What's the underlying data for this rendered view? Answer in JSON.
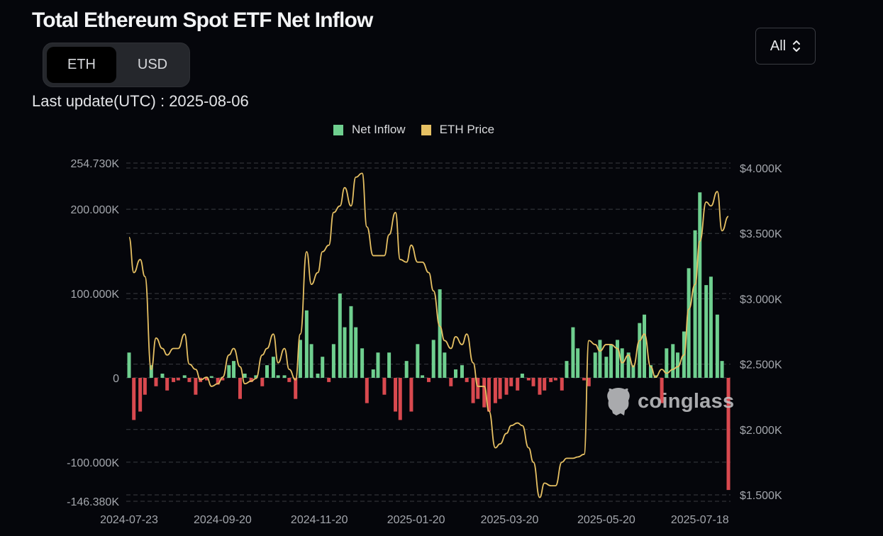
{
  "header": {
    "title": "Total Ethereum Spot ETF Net Inflow",
    "unit_toggle": {
      "options": [
        "ETH",
        "USD"
      ],
      "selected": "ETH"
    },
    "last_update": "Last update(UTC) : 2025-08-06",
    "range_select": {
      "value": "All",
      "icon": "chevron-up-down-icon"
    }
  },
  "watermark": {
    "text": "coinglass",
    "icon": "coinglass-logo-icon"
  },
  "chart_data": {
    "type": "bar+line",
    "legend": [
      {
        "name": "Net Inflow",
        "color": "#6fcf8f"
      },
      {
        "name": "ETH Price",
        "color": "#e6c063"
      }
    ],
    "legend_position": "top-center",
    "colors": {
      "positive": "#6fcf8f",
      "negative": "#d9494f",
      "price": "#e6c063",
      "grid": "#3a3c42"
    },
    "x_tick_labels": [
      "2024-07-23",
      "2024-09-20",
      "2024-11-20",
      "2025-01-20",
      "2025-03-20",
      "2025-05-20",
      "2025-07-18"
    ],
    "y_left": {
      "tick_labels": [
        "254.730K",
        "200.000K",
        "100.000K",
        "0",
        "-100.000K",
        "-146.380K"
      ],
      "ticks": [
        254.73,
        200,
        100,
        0,
        -100,
        -146.38
      ],
      "range": [
        -146.38,
        254.73
      ],
      "unit": "K ETH"
    },
    "y_right": {
      "tick_labels": [
        "$4.000K",
        "$3.500K",
        "$3.000K",
        "$2.500K",
        "$2.000K",
        "$1.500K"
      ],
      "ticks": [
        4000,
        3500,
        3000,
        2500,
        2000,
        1500
      ],
      "range": [
        1500,
        4000
      ],
      "unit": "USD"
    },
    "grid": true,
    "x": [
      "2024-07-23",
      "2024-07-26",
      "2024-07-30",
      "2024-08-02",
      "2024-08-06",
      "2024-08-09",
      "2024-08-13",
      "2024-08-16",
      "2024-08-20",
      "2024-08-23",
      "2024-08-27",
      "2024-08-30",
      "2024-09-03",
      "2024-09-06",
      "2024-09-10",
      "2024-09-13",
      "2024-09-17",
      "2024-09-20",
      "2024-09-24",
      "2024-09-27",
      "2024-10-01",
      "2024-10-04",
      "2024-10-08",
      "2024-10-11",
      "2024-10-15",
      "2024-10-18",
      "2024-10-22",
      "2024-10-25",
      "2024-10-29",
      "2024-11-01",
      "2024-11-05",
      "2024-11-08",
      "2024-11-12",
      "2024-11-15",
      "2024-11-19",
      "2024-11-22",
      "2024-11-26",
      "2024-11-29",
      "2024-12-03",
      "2024-12-06",
      "2024-12-10",
      "2024-12-13",
      "2024-12-17",
      "2024-12-20",
      "2024-12-24",
      "2024-12-27",
      "2024-12-31",
      "2025-01-03",
      "2025-01-07",
      "2025-01-10",
      "2025-01-14",
      "2025-01-17",
      "2025-01-21",
      "2025-01-24",
      "2025-01-28",
      "2025-01-31",
      "2025-02-04",
      "2025-02-07",
      "2025-02-11",
      "2025-02-14",
      "2025-02-18",
      "2025-02-21",
      "2025-02-25",
      "2025-02-28",
      "2025-03-04",
      "2025-03-07",
      "2025-03-11",
      "2025-03-14",
      "2025-03-18",
      "2025-03-21",
      "2025-03-25",
      "2025-03-28",
      "2025-04-01",
      "2025-04-04",
      "2025-04-08",
      "2025-04-11",
      "2025-04-15",
      "2025-04-18",
      "2025-04-22",
      "2025-04-25",
      "2025-04-29",
      "2025-05-02",
      "2025-05-06",
      "2025-05-09",
      "2025-05-13",
      "2025-05-16",
      "2025-05-20",
      "2025-05-23",
      "2025-05-27",
      "2025-05-30",
      "2025-06-03",
      "2025-06-06",
      "2025-06-10",
      "2025-06-13",
      "2025-06-17",
      "2025-06-20",
      "2025-06-24",
      "2025-06-27",
      "2025-07-01",
      "2025-07-04",
      "2025-07-08",
      "2025-07-11",
      "2025-07-15",
      "2025-07-18",
      "2025-07-22",
      "2025-07-25",
      "2025-07-29",
      "2025-08-01",
      "2025-08-05"
    ],
    "series": [
      {
        "name": "Net Inflow",
        "type": "bar",
        "unit": "K ETH",
        "values": [
          30,
          -50,
          -40,
          -20,
          15,
          -10,
          5,
          -15,
          -5,
          -3,
          3,
          -5,
          -20,
          -5,
          -3,
          2,
          -8,
          -3,
          15,
          20,
          -25,
          5,
          -5,
          3,
          -10,
          15,
          25,
          3,
          3,
          -5,
          -25,
          45,
          80,
          40,
          5,
          25,
          -5,
          40,
          100,
          60,
          85,
          60,
          35,
          -30,
          10,
          30,
          -20,
          30,
          -40,
          -50,
          20,
          -40,
          40,
          3,
          -5,
          45,
          105,
          30,
          -10,
          10,
          15,
          -5,
          -30,
          -25,
          -35,
          -40,
          -30,
          -25,
          -20,
          -10,
          -15,
          5,
          -3,
          -10,
          -20,
          -15,
          -5,
          -3,
          -15,
          20,
          60,
          35,
          -3,
          -10,
          30,
          45,
          25,
          40,
          45,
          35,
          30,
          15,
          65,
          75,
          15,
          3,
          -30,
          35,
          40,
          30,
          55,
          130,
          175,
          220,
          110,
          120,
          75,
          20,
          -133
        ]
      },
      {
        "name": "ETH Price",
        "type": "line",
        "unit": "USD",
        "values": [
          3470,
          3200,
          3300,
          3170,
          2460,
          2700,
          2620,
          2570,
          2620,
          2620,
          2730,
          2500,
          2460,
          2380,
          2400,
          2330,
          2350,
          2400,
          2570,
          2620,
          2480,
          2350,
          2370,
          2390,
          2570,
          2620,
          2730,
          2510,
          2620,
          2460,
          2380,
          2730,
          3360,
          3110,
          3200,
          3360,
          3410,
          3660,
          3710,
          3850,
          3710,
          3930,
          3960,
          3550,
          3330,
          3330,
          3330,
          3490,
          3660,
          3300,
          3280,
          3410,
          3280,
          3280,
          3200,
          3060,
          2790,
          2680,
          2620,
          2710,
          2650,
          2730,
          2510,
          2330,
          2330,
          2140,
          1860,
          1890,
          1970,
          2030,
          2050,
          2030,
          1860,
          1750,
          1480,
          1590,
          1570,
          1570,
          1750,
          1780,
          1780,
          1790,
          1810,
          2680,
          2650,
          2600,
          2650,
          2650,
          2620,
          2510,
          2570,
          2480,
          2680,
          2730,
          2480,
          2400,
          2460,
          2430,
          2460,
          2480,
          2570,
          2920,
          3110,
          3440,
          3740,
          3710,
          3820,
          3520,
          3630
        ]
      }
    ]
  }
}
